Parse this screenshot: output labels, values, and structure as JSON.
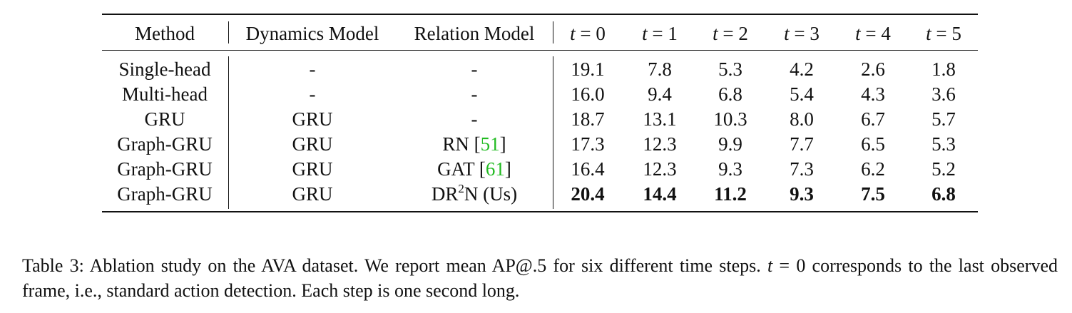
{
  "headers": {
    "method": "Method",
    "dynamics": "Dynamics Model",
    "relation": "Relation Model",
    "t_var": "t",
    "t_eq": "=",
    "t_values": [
      "0",
      "1",
      "2",
      "3",
      "4",
      "5"
    ]
  },
  "rows": [
    {
      "method": "Single-head",
      "dynamics": "-",
      "relation": "-",
      "values": [
        "19.1",
        "7.8",
        "5.3",
        "4.2",
        "2.6",
        "1.8"
      ]
    },
    {
      "method": "Multi-head",
      "dynamics": "-",
      "relation": "-",
      "values": [
        "16.0",
        "9.4",
        "6.8",
        "5.4",
        "4.3",
        "3.6"
      ]
    },
    {
      "method": "GRU",
      "dynamics": "GRU",
      "relation": "-",
      "values": [
        "18.7",
        "13.1",
        "10.3",
        "8.0",
        "6.7",
        "5.7"
      ]
    },
    {
      "method": "Graph-GRU",
      "dynamics": "GRU",
      "relation": "RN",
      "relation_cite": "51",
      "values": [
        "17.3",
        "12.3",
        "9.9",
        "7.7",
        "6.5",
        "5.3"
      ]
    },
    {
      "method": "Graph-GRU",
      "dynamics": "GRU",
      "relation": "GAT",
      "relation_cite": "61",
      "values": [
        "16.4",
        "12.3",
        "9.3",
        "7.3",
        "6.2",
        "5.2"
      ]
    },
    {
      "method": "Graph-GRU",
      "dynamics": "GRU",
      "relation_pre": "DR",
      "relation_sup": "2",
      "relation_post": "N (Us)",
      "values": [
        "20.4",
        "14.4",
        "11.2",
        "9.3",
        "7.5",
        "6.8"
      ]
    }
  ],
  "caption": {
    "lead": "Table 3: Ablation study on the AVA dataset. We report mean AP@.5 for six different time steps.",
    "t_var": "t",
    "t_eq": "=",
    "t_zero": "0",
    "tail": "corresponds to the last observed frame, i.e., standard action detection. Each step is one second long."
  }
}
